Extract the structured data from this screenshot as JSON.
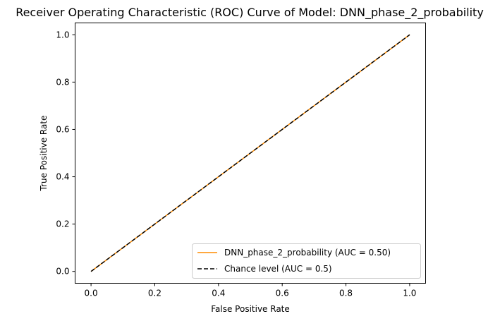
{
  "chart_data": {
    "type": "line",
    "title": "Receiver Operating Characteristic (ROC) Curve of Model: DNN_phase_2_probability",
    "xlabel": "False Positive Rate",
    "ylabel": "True Positive Rate",
    "xlim": [
      -0.05,
      1.05
    ],
    "ylim": [
      -0.05,
      1.05
    ],
    "xticks": [
      "0.0",
      "0.2",
      "0.4",
      "0.6",
      "0.8",
      "1.0"
    ],
    "yticks": [
      "0.0",
      "0.2",
      "0.4",
      "0.6",
      "0.8",
      "1.0"
    ],
    "grid": false,
    "legend_position": "lower-right",
    "series": [
      {
        "name": "DNN_phase_2_probability (AUC = 0.50)",
        "color": "#ff8c00",
        "style": "solid",
        "x": [
          0.0,
          1.0
        ],
        "y": [
          0.0,
          1.0
        ]
      },
      {
        "name": "Chance level (AUC = 0.5)",
        "color": "#000000",
        "style": "dashed",
        "x": [
          0.0,
          1.0
        ],
        "y": [
          0.0,
          1.0
        ]
      }
    ]
  }
}
